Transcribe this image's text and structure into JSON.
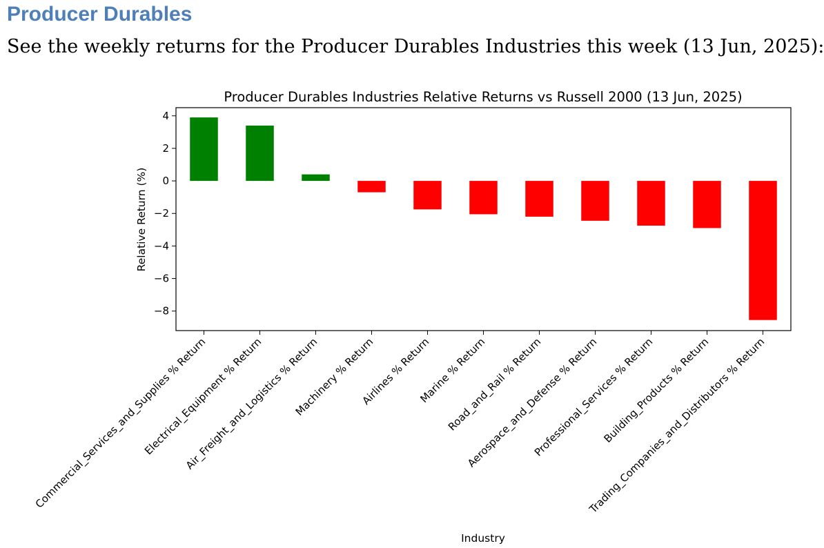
{
  "page": {
    "heading": "Producer Durables",
    "intro": "See the weekly returns for the Producer Durables Industries this week (13 Jun, 2025):"
  },
  "colors": {
    "positive": "#008000",
    "negative": "#ff0000",
    "heading": "#4f7fb8"
  },
  "chart_data": {
    "type": "bar",
    "title": "Producer Durables Industries Relative Returns vs Russell 2000 (13 Jun, 2025)",
    "xlabel": "Industry",
    "ylabel": "Relative Return (%)",
    "ylim": [
      -9.2,
      4.5
    ],
    "yticks": [
      4,
      2,
      0,
      -2,
      -4,
      -6,
      -8
    ],
    "ytick_labels": [
      "4",
      "2",
      "0",
      "−2",
      "−4",
      "−6",
      "−8"
    ],
    "grid": false,
    "legend": false,
    "categories": [
      "Commercial_Services_and_Supplies % Return",
      "Electrical_Equipment % Return",
      "Air_Freight_and_Logistics % Return",
      "Machinery % Return",
      "Airlines % Return",
      "Marine % Return",
      "Road_and_Rail % Return",
      "Aerospace_and_Defense % Return",
      "Professional_Services % Return",
      "Building_Products % Return",
      "Trading_Companies_and_Distributors % Return"
    ],
    "values": [
      3.9,
      3.4,
      0.4,
      -0.7,
      -1.75,
      -2.05,
      -2.2,
      -2.45,
      -2.75,
      -2.9,
      -8.55
    ]
  }
}
